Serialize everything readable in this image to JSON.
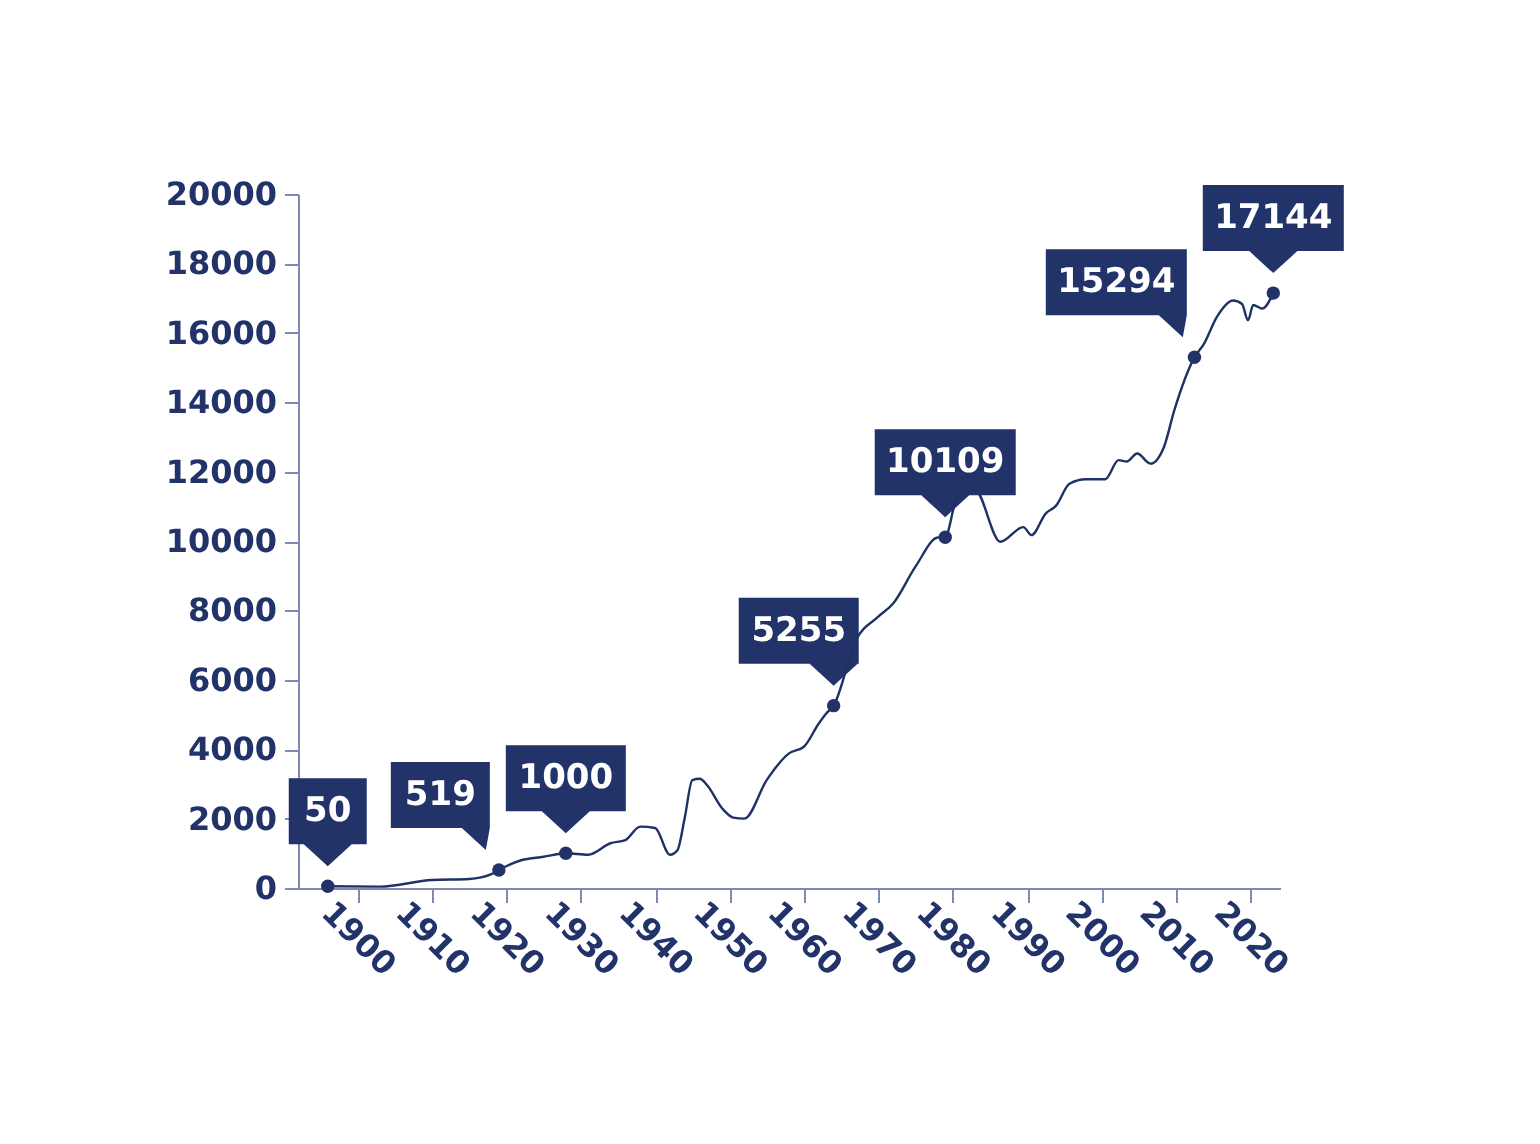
{
  "chart_data": {
    "type": "line",
    "xlim": [
      1892,
      2024
    ],
    "ylim": [
      0,
      20000
    ],
    "xticks": [
      1900,
      1910,
      1920,
      1930,
      1940,
      1950,
      1960,
      1970,
      1980,
      1990,
      2000,
      2010,
      2020
    ],
    "yticks": [
      0,
      2000,
      4000,
      6000,
      8000,
      10000,
      12000,
      14000,
      16000,
      18000,
      20000
    ],
    "grid": false,
    "x": [
      1896,
      1903,
      1910,
      1915,
      1918,
      1919,
      1922,
      1925,
      1928,
      1931,
      1934,
      1936,
      1938,
      1940,
      1942,
      1943,
      1944,
      1945,
      1946,
      1947,
      1949,
      1950.5,
      1952,
      1955,
      1958,
      1960,
      1962,
      1963,
      1964,
      1967,
      1970,
      1972,
      1975,
      1978,
      1979,
      1980.5,
      1982.4,
      1983,
      1986.4,
      1989.5,
      1990.6,
      1992.5,
      1993.9,
      1995.7,
      1997.9,
      2000.5,
      2002.3,
      2003.4,
      2004.8,
      2006.6,
      2008.4,
      2009.8,
      2012.5,
      2013.8,
      2015.5,
      2017.7,
      2018.9,
      2019.7,
      2020.4,
      2021.6,
      2023.1
    ],
    "series": [
      {
        "color": "#1f3266",
        "values": [
          50,
          40,
          230,
          260,
          400,
          520,
          800,
          900,
          1000,
          960,
          1290,
          1380,
          1770,
          1730,
          960,
          1090,
          2040,
          3110,
          3150,
          2960,
          2300,
          2030,
          2000,
          3110,
          3880,
          4070,
          4740,
          5030,
          5260,
          7140,
          7820,
          8200,
          9260,
          10100,
          10110,
          11180,
          11460,
          11470,
          9980,
          10400,
          10170,
          10790,
          11020,
          11650,
          11780,
          11780,
          12330,
          12290,
          12520,
          12230,
          12710,
          13770,
          15290,
          15690,
          16450,
          16930,
          16830,
          16360,
          16800,
          16700,
          17140
        ]
      },
      {
        "type": "scatter",
        "color": "#22336a",
        "x": [
          1896,
          1919,
          1928,
          1964,
          1979,
          2012.5,
          2023.1
        ],
        "values": [
          50,
          519,
          1000,
          5255,
          10109,
          15294,
          17144
        ],
        "value_labels": [
          "50",
          "519",
          "1000",
          "5255",
          "10109",
          "15294",
          "17144"
        ]
      }
    ]
  }
}
